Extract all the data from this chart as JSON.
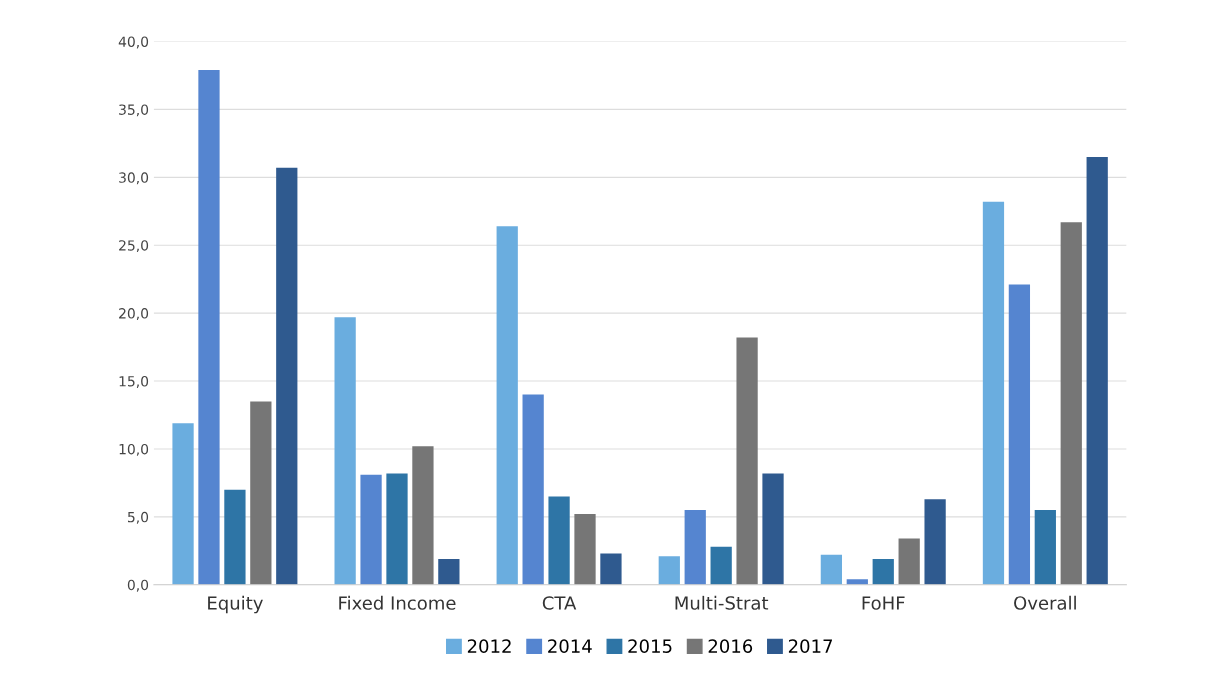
{
  "chart_data": {
    "type": "bar",
    "categories": [
      "Equity",
      "Fixed Income",
      "CTA",
      "Multi-Strat",
      "FoHF",
      "Overall"
    ],
    "series": [
      {
        "name": "2012",
        "color": "#6aaddf",
        "values": [
          11.9,
          19.7,
          26.4,
          2.1,
          2.2,
          28.2
        ]
      },
      {
        "name": "2014",
        "color": "#5585d0",
        "values": [
          37.9,
          8.1,
          14.0,
          5.5,
          0.4,
          22.1
        ]
      },
      {
        "name": "2015",
        "color": "#2e75a6",
        "values": [
          7.0,
          8.2,
          6.5,
          2.8,
          1.9,
          5.5
        ]
      },
      {
        "name": "2016",
        "color": "#767676",
        "values": [
          13.5,
          10.2,
          5.2,
          18.2,
          3.4,
          26.7
        ]
      },
      {
        "name": "2017",
        "color": "#2f5a8f",
        "values": [
          30.7,
          1.9,
          2.3,
          8.2,
          6.3,
          31.5
        ]
      }
    ],
    "ylim": [
      0,
      40
    ],
    "yticks": [
      {
        "value": 0,
        "label": "0,0"
      },
      {
        "value": 5,
        "label": "5,0"
      },
      {
        "value": 10,
        "label": "10,0"
      },
      {
        "value": 15,
        "label": "15,0"
      },
      {
        "value": 20,
        "label": "20,0"
      },
      {
        "value": 25,
        "label": "25,0"
      },
      {
        "value": 30,
        "label": "30,0"
      },
      {
        "value": 35,
        "label": "35,0"
      },
      {
        "value": 40,
        "label": "40,0"
      }
    ],
    "grid": "y",
    "legend": "bottom"
  }
}
